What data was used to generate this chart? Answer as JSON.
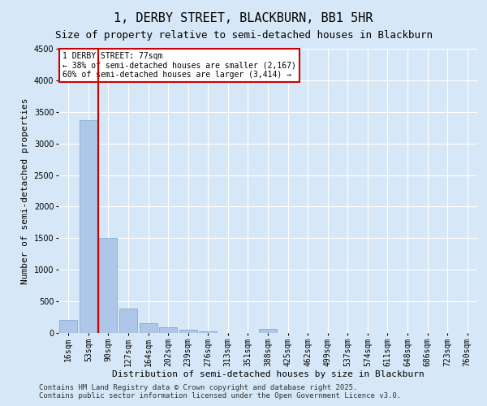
{
  "title": "1, DERBY STREET, BLACKBURN, BB1 5HR",
  "subtitle": "Size of property relative to semi-detached houses in Blackburn",
  "xlabel": "Distribution of semi-detached houses by size in Blackburn",
  "ylabel": "Number of semi-detached properties",
  "categories": [
    "16sqm",
    "53sqm",
    "90sqm",
    "127sqm",
    "164sqm",
    "202sqm",
    "239sqm",
    "276sqm",
    "313sqm",
    "351sqm",
    "388sqm",
    "425sqm",
    "462sqm",
    "499sqm",
    "537sqm",
    "574sqm",
    "611sqm",
    "648sqm",
    "686sqm",
    "723sqm",
    "760sqm"
  ],
  "values": [
    200,
    3370,
    1500,
    380,
    150,
    90,
    55,
    30,
    0,
    0,
    60,
    0,
    0,
    0,
    0,
    0,
    0,
    0,
    0,
    0,
    0
  ],
  "bar_color": "#aec6e8",
  "bar_edge_color": "#7bafd4",
  "vline_x": 1.5,
  "vline_color": "#cc0000",
  "ylim": [
    0,
    4500
  ],
  "yticks": [
    0,
    500,
    1000,
    1500,
    2000,
    2500,
    3000,
    3500,
    4000,
    4500
  ],
  "annotation_title": "1 DERBY STREET: 77sqm",
  "annotation_line1": "← 38% of semi-detached houses are smaller (2,167)",
  "annotation_line2": "60% of semi-detached houses are larger (3,414) →",
  "annotation_box_color": "#cc0000",
  "footer1": "Contains HM Land Registry data © Crown copyright and database right 2025.",
  "footer2": "Contains public sector information licensed under the Open Government Licence v3.0.",
  "bg_color": "#d6e8f7",
  "plot_bg_color": "#d6e8f7",
  "title_fontsize": 11,
  "subtitle_fontsize": 9,
  "axis_label_fontsize": 8,
  "tick_fontsize": 7,
  "annotation_fontsize": 7,
  "footer_fontsize": 6.5
}
